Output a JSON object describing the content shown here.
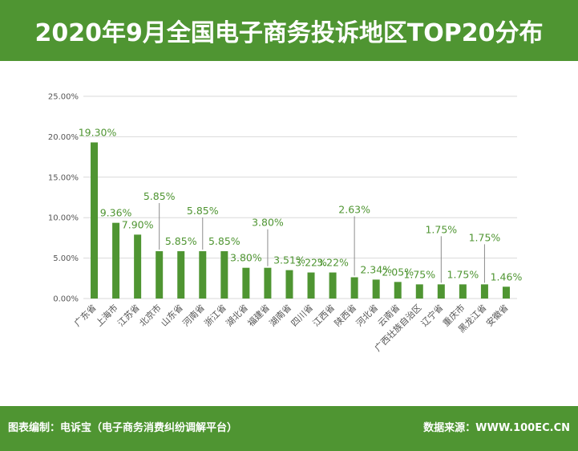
{
  "header": {
    "title": "2020年9月全国电子商务投诉地区TOP20分布"
  },
  "footer": {
    "left": "图表编制：电诉宝（电子商务消费纠纷调解平台）",
    "right": "数据来源：WWW.100EC.CN"
  },
  "colors": {
    "bar": "#4f9532",
    "grid": "#d9d9d9",
    "label": "#4f9532"
  },
  "chart_data": {
    "type": "bar",
    "title": "2020年9月全国电子商务投诉地区TOP20分布",
    "xlabel": "",
    "ylabel": "",
    "ylim": [
      0,
      25
    ],
    "yticks": [
      "0.00%",
      "5.00%",
      "10.00%",
      "15.00%",
      "20.00%",
      "25.00%"
    ],
    "grid": true,
    "categories": [
      "广东省",
      "上海市",
      "江苏省",
      "北京市",
      "山东省",
      "河南省",
      "浙江省",
      "湖北省",
      "福建省",
      "湖南省",
      "四川省",
      "江西省",
      "陕西省",
      "河北省",
      "云南省",
      "广西壮族自治区",
      "辽宁省",
      "重庆市",
      "黑龙江省",
      "安徽省"
    ],
    "values": [
      19.3,
      9.36,
      7.9,
      5.85,
      5.85,
      5.85,
      5.85,
      3.8,
      3.8,
      3.51,
      3.22,
      3.22,
      2.63,
      2.34,
      2.05,
      1.75,
      1.75,
      1.75,
      1.75,
      1.46
    ],
    "labels": [
      "19.30%",
      "9.36%",
      "7.90%",
      "5.85%",
      "5.85%",
      "5.85%",
      "5.85%",
      "3.80%",
      "3.80%",
      "3.51%",
      "3.22%",
      "3.22%",
      "2.63%",
      "2.34%",
      "2.05%",
      "1.75%",
      "1.75%",
      "1.75%",
      "1.75%",
      "1.46%"
    ]
  }
}
